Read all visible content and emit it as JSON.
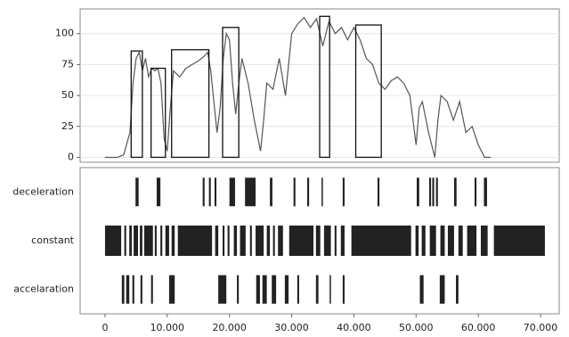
{
  "chart_data": [
    {
      "type": "line",
      "color": "#555555",
      "grid": true,
      "x": [
        0,
        1000,
        2000,
        3000,
        4000,
        4500,
        5000,
        5500,
        6000,
        6500,
        7000,
        7500,
        8000,
        8500,
        9000,
        9500,
        10000,
        10500,
        11000,
        12000,
        13000,
        14000,
        15000,
        16000,
        16500,
        17000,
        17500,
        18000,
        18500,
        19000,
        19500,
        20000,
        20500,
        21000,
        21500,
        22000,
        23000,
        24000,
        25000,
        25500,
        26000,
        27000,
        28000,
        29000,
        30000,
        31000,
        32000,
        33000,
        34000,
        35000,
        36000,
        37000,
        38000,
        39000,
        40000,
        41000,
        42000,
        43000,
        44000,
        45000,
        46000,
        47000,
        48000,
        49000,
        50000,
        50500,
        51000,
        52000,
        53000,
        53500,
        54000,
        55000,
        56000,
        57000,
        58000,
        59000,
        60000,
        61000,
        62000
      ],
      "values": [
        0,
        0,
        0,
        2,
        20,
        60,
        80,
        85,
        70,
        80,
        65,
        72,
        70,
        72,
        60,
        15,
        5,
        40,
        70,
        65,
        72,
        75,
        78,
        82,
        85,
        70,
        45,
        20,
        40,
        80,
        100,
        95,
        60,
        35,
        60,
        80,
        60,
        30,
        5,
        30,
        60,
        55,
        80,
        50,
        100,
        108,
        113,
        105,
        112,
        90,
        110,
        100,
        105,
        95,
        105,
        95,
        80,
        75,
        60,
        55,
        62,
        65,
        60,
        50,
        10,
        40,
        45,
        20,
        0,
        30,
        50,
        45,
        30,
        45,
        20,
        25,
        10,
        0,
        0
      ],
      "boxes": [
        {
          "x0": 4200,
          "x1": 6000,
          "top": 86
        },
        {
          "x0": 7400,
          "x1": 9700,
          "top": 72
        },
        {
          "x0": 10700,
          "x1": 16700,
          "top": 87
        },
        {
          "x0": 18900,
          "x1": 21500,
          "top": 105
        },
        {
          "x0": 34500,
          "x1": 36100,
          "top": 114
        },
        {
          "x0": 40300,
          "x1": 44400,
          "top": 107
        }
      ],
      "xlim": [
        -4000,
        73000
      ],
      "ylim": [
        -4,
        120
      ],
      "yticks": [
        0,
        25,
        50,
        75,
        100
      ]
    },
    {
      "type": "event",
      "color": "#222222",
      "categories": [
        "deceleration",
        "constant",
        "accelaration"
      ],
      "events": [
        [
          [
            4900,
            5400
          ],
          [
            8300,
            8900
          ],
          [
            15700,
            16000
          ],
          [
            16700,
            17000
          ],
          [
            17600,
            17900
          ],
          [
            20000,
            20900
          ],
          [
            22500,
            24200
          ],
          [
            26500,
            26900
          ],
          [
            30300,
            30600
          ],
          [
            32500,
            32800
          ],
          [
            34800,
            35000
          ],
          [
            38200,
            38500
          ],
          [
            43800,
            44100
          ],
          [
            50100,
            50500
          ],
          [
            52100,
            52400
          ],
          [
            52600,
            52900
          ],
          [
            53200,
            53500
          ],
          [
            56100,
            56500
          ],
          [
            59400,
            59700
          ],
          [
            60900,
            61400
          ]
        ],
        [
          [
            0,
            2600
          ],
          [
            3100,
            3400
          ],
          [
            3900,
            4300
          ],
          [
            4600,
            5300
          ],
          [
            5600,
            6000
          ],
          [
            6300,
            7700
          ],
          [
            8000,
            8300
          ],
          [
            8900,
            9200
          ],
          [
            9700,
            10300
          ],
          [
            10700,
            11200
          ],
          [
            11700,
            17200
          ],
          [
            17700,
            18200
          ],
          [
            18900,
            19200
          ],
          [
            19700,
            20000
          ],
          [
            20700,
            21200
          ],
          [
            21700,
            22600
          ],
          [
            23300,
            23600
          ],
          [
            24200,
            25500
          ],
          [
            26000,
            26500
          ],
          [
            27000,
            27300
          ],
          [
            27800,
            28600
          ],
          [
            29600,
            33500
          ],
          [
            33900,
            34600
          ],
          [
            35200,
            36300
          ],
          [
            36900,
            37200
          ],
          [
            37900,
            38500
          ],
          [
            39600,
            49200
          ],
          [
            49900,
            50400
          ],
          [
            50900,
            51500
          ],
          [
            52200,
            53200
          ],
          [
            53900,
            54600
          ],
          [
            55100,
            56100
          ],
          [
            56800,
            57500
          ],
          [
            58200,
            59700
          ],
          [
            60400,
            61500
          ],
          [
            62500,
            70700
          ]
        ],
        [
          [
            2700,
            3100
          ],
          [
            3400,
            3900
          ],
          [
            4400,
            4700
          ],
          [
            5700,
            6000
          ],
          [
            7400,
            7700
          ],
          [
            10300,
            11200
          ],
          [
            18200,
            19500
          ],
          [
            21200,
            21500
          ],
          [
            24300,
            24900
          ],
          [
            25300,
            26000
          ],
          [
            26800,
            27500
          ],
          [
            28900,
            29500
          ],
          [
            30900,
            31200
          ],
          [
            33900,
            34300
          ],
          [
            36100,
            36300
          ],
          [
            38200,
            38500
          ],
          [
            50600,
            51200
          ],
          [
            53800,
            54600
          ],
          [
            56400,
            56800
          ]
        ]
      ],
      "xlim": [
        -4000,
        73000
      ],
      "xticks": [
        0,
        {
          "value": 10000,
          "label": "10.000"
        },
        {
          "value": 20000,
          "label": "20.000"
        },
        {
          "value": 30000,
          "label": "30.000"
        },
        {
          "value": 40000,
          "label": "40.000"
        },
        {
          "value": 50000,
          "label": "50.000"
        },
        {
          "value": 60000,
          "label": "60.000"
        },
        {
          "value": 70000,
          "label": "70.000"
        }
      ]
    }
  ]
}
